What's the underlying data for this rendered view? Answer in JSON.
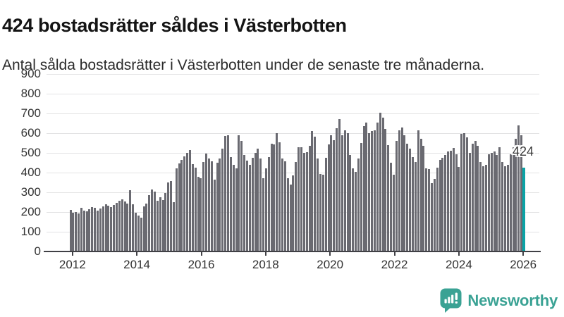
{
  "chart_data": {
    "type": "bar",
    "title": "424 bostadsrätter såldes i Västerbotten",
    "subtitle": "Antal sålda bostadsrätter i Västerbotten under de senaste tre månaderna.",
    "x_start": "2012-01",
    "frequency": "monthly",
    "x_ticks": [
      "2012",
      "2014",
      "2016",
      "2018",
      "2020",
      "2022",
      "2024",
      "2026"
    ],
    "y_ticks": [
      0,
      100,
      200,
      300,
      400,
      500,
      600,
      700,
      800,
      900
    ],
    "ylim": [
      0,
      900
    ],
    "grid": "horizontal",
    "legend": "none",
    "bar_color": "#6a6a71",
    "highlight_color": "#0aa3a6",
    "axis_color": "#404045",
    "values": [
      210,
      198,
      200,
      192,
      220,
      207,
      205,
      215,
      226,
      221,
      207,
      217,
      228,
      241,
      232,
      224,
      237,
      248,
      258,
      265,
      252,
      243,
      312,
      238,
      197,
      183,
      172,
      227,
      244,
      286,
      315,
      303,
      256,
      274,
      262,
      297,
      350,
      357,
      250,
      420,
      448,
      465,
      483,
      501,
      513,
      442,
      424,
      380,
      370,
      453,
      495,
      471,
      459,
      364,
      450,
      470,
      520,
      585,
      590,
      480,
      440,
      420,
      590,
      560,
      490,
      462,
      440,
      475,
      500,
      520,
      470,
      370,
      420,
      480,
      545,
      542,
      600,
      553,
      470,
      458,
      370,
      340,
      387,
      452,
      530,
      530,
      500,
      505,
      535,
      610,
      583,
      470,
      393,
      390,
      476,
      542,
      589,
      565,
      625,
      670,
      590,
      615,
      600,
      490,
      420,
      405,
      470,
      550,
      635,
      655,
      600,
      610,
      615,
      655,
      705,
      680,
      620,
      540,
      450,
      390,
      560,
      615,
      630,
      590,
      545,
      520,
      480,
      455,
      615,
      571,
      536,
      420,
      417,
      345,
      369,
      425,
      464,
      476,
      488,
      506,
      512,
      524,
      494,
      429,
      595,
      601,
      577,
      500,
      548,
      560,
      535,
      452,
      434,
      440,
      494,
      500,
      506,
      488,
      530,
      452,
      434,
      440,
      494,
      530,
      571,
      638,
      590,
      424
    ],
    "highlight": {
      "index": 167,
      "value": 424,
      "label": "424"
    }
  },
  "footer": {
    "brand": "Newsworthy",
    "brand_color": "#3aa294"
  }
}
